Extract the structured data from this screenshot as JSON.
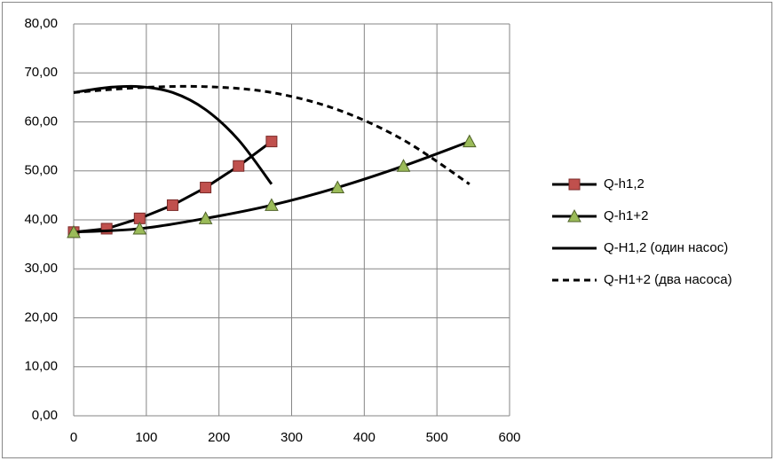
{
  "chart_data": {
    "type": "line",
    "xlim": [
      0,
      600
    ],
    "xticks": [
      0,
      100,
      200,
      300,
      400,
      500,
      600
    ],
    "ylim": [
      0,
      80
    ],
    "yticks": [
      {
        "value": 0,
        "label": "0,00"
      },
      {
        "value": 10,
        "label": "10,00"
      },
      {
        "value": 20,
        "label": "20,00"
      },
      {
        "value": 30,
        "label": "30,00"
      },
      {
        "value": 40,
        "label": "40,00"
      },
      {
        "value": 50,
        "label": "50,00"
      },
      {
        "value": 60,
        "label": "60,00"
      },
      {
        "value": 70,
        "label": "70,00"
      },
      {
        "value": 80,
        "label": "80,00"
      }
    ],
    "grid": true,
    "legend": "right",
    "series": [
      {
        "name": "Q-h1,2",
        "color": "#000000",
        "marker": "square",
        "marker_color": "#c0504d",
        "dash": false,
        "smooth": false,
        "x": [
          0,
          45.4,
          90.8,
          136.2,
          181.6,
          227,
          272.4
        ],
        "values": [
          37.5,
          38.2,
          40.3,
          43,
          46.6,
          51,
          56
        ]
      },
      {
        "name": "Q-h1+2",
        "color": "#000000",
        "marker": "triangle",
        "marker_color": "#9bbb59",
        "dash": false,
        "smooth": true,
        "x": [
          0,
          90.8,
          181.6,
          272.4,
          363.2,
          454,
          544.8
        ],
        "values": [
          37.5,
          38.2,
          40.3,
          43,
          46.6,
          51,
          56
        ]
      },
      {
        "name": "Q-H1,2 (один насос)",
        "color": "#000000",
        "marker": "none",
        "dash": false,
        "smooth": true,
        "x": [
          0,
          45.4,
          90.8,
          136.2,
          181.6,
          227,
          272.4
        ],
        "values": [
          66,
          67,
          67.2,
          66,
          62.5,
          56.3,
          47.3
        ]
      },
      {
        "name": "Q-H1+2 (два насоса)",
        "color": "#000000",
        "marker": "none",
        "dash": true,
        "smooth": true,
        "x": [
          0,
          90.8,
          181.6,
          272.4,
          363.2,
          454,
          544.8
        ],
        "values": [
          66,
          67,
          67.2,
          66,
          62.5,
          56.3,
          47.3
        ]
      }
    ]
  }
}
